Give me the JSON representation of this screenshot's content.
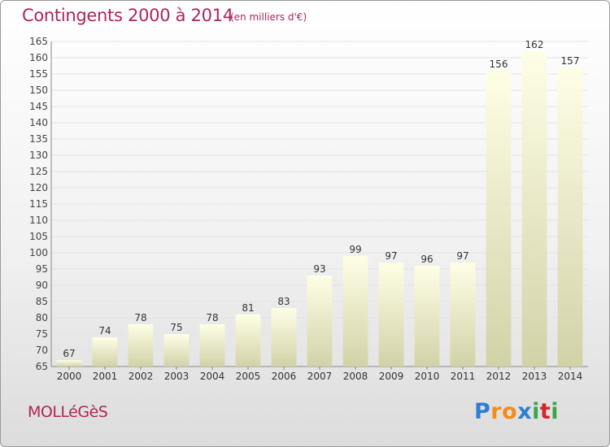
{
  "header": {
    "title": "Contingents 2000 à 2014",
    "unit": "(en milliers d'€)"
  },
  "footer": {
    "commune": "MOLLéGèS",
    "brand_letters": [
      "P",
      "r",
      "o",
      "x",
      "i",
      "t",
      "i"
    ]
  },
  "colors": {
    "title": "#b0245b",
    "bar_top": "#fefee6",
    "bar_bottom": "#d2d2a8",
    "brand": [
      "#2f7fd1",
      "#f28c1b",
      "#f28c1b",
      "#2f7fd1",
      "#3aa64a",
      "#d2252e",
      "#3aa64a"
    ]
  },
  "chart_data": {
    "type": "bar",
    "categories": [
      "2000",
      "2001",
      "2002",
      "2003",
      "2004",
      "2005",
      "2006",
      "2007",
      "2008",
      "2009",
      "2010",
      "2011",
      "2012",
      "2013",
      "2014"
    ],
    "values": [
      67,
      74,
      78,
      75,
      78,
      81,
      83,
      93,
      99,
      97,
      96,
      97,
      156,
      162,
      157
    ],
    "ylim": [
      65,
      165
    ],
    "yticks": [
      65,
      70,
      75,
      80,
      85,
      90,
      95,
      100,
      105,
      110,
      115,
      120,
      125,
      130,
      135,
      140,
      145,
      150,
      155,
      160,
      165
    ],
    "grid": true,
    "legend": "none"
  }
}
